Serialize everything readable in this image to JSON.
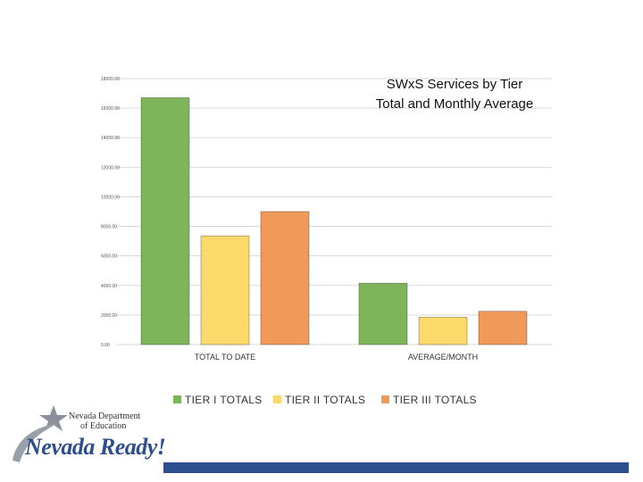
{
  "chart_data": {
    "type": "bar",
    "title_lines": [
      "SWxS Services by Tier",
      "Total and Monthly Average"
    ],
    "categories": [
      "TOTAL TO DATE",
      "AVERAGE/MONTH"
    ],
    "series": [
      {
        "name": "TIER I TOTALS",
        "color": "#7eb55b",
        "values": [
          16700,
          4150
        ]
      },
      {
        "name": "TIER II TOTALS",
        "color": "#fcd96b",
        "values": [
          7350,
          1850
        ]
      },
      {
        "name": "TIER III TOTALS",
        "color": "#ef9a58",
        "values": [
          9000,
          2250
        ]
      }
    ],
    "yticks": [
      "0.00",
      "2000.00",
      "4000.00",
      "6000.00",
      "8000.00",
      "10000.00",
      "12000.00",
      "14000.00",
      "16000.00",
      "18000.00"
    ],
    "ylim": [
      0,
      18000
    ],
    "grid": true,
    "legend_position": "bottom"
  },
  "logo": {
    "line1": "Nevada Department",
    "line2": "of Education",
    "slogan": "Nevada Ready!",
    "star_color": "#8a8f99"
  },
  "footer": {
    "bar_color": "#2b4f8f"
  }
}
